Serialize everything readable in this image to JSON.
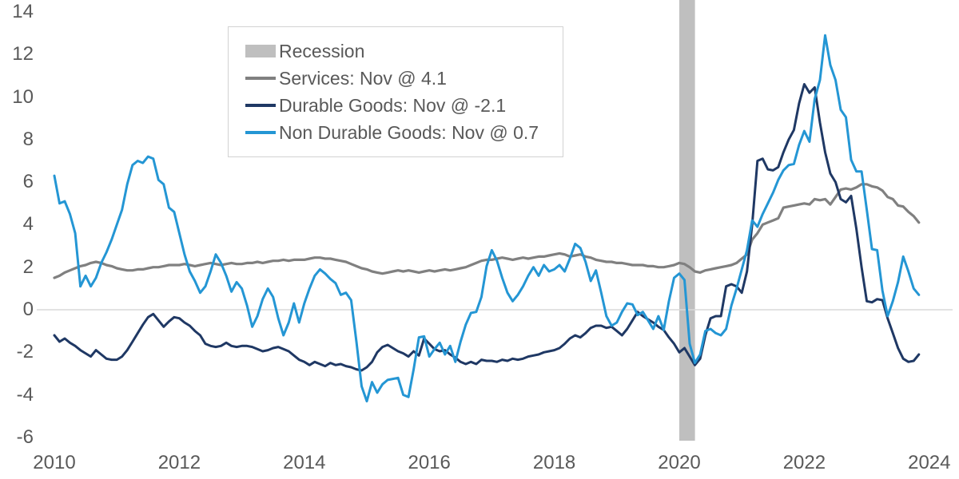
{
  "chart_data": {
    "type": "line",
    "title": "",
    "frequency": "monthly",
    "x_start": "2010-01",
    "x_end": "2023-11",
    "ylim": [
      -6,
      14
    ],
    "y_ticks": [
      14,
      12,
      10,
      8,
      6,
      4,
      2,
      0,
      -2,
      -4,
      -6
    ],
    "x_ticks": [
      2010,
      2012,
      2014,
      2016,
      2018,
      2020,
      2022,
      2024
    ],
    "grid": "zero-line-only",
    "legend_position": "top-left-inset",
    "colors": {
      "axis_text": "#595959",
      "zero_line": "#d9d9d9",
      "legend_border": "#d2d2d2"
    },
    "recession_band": {
      "label": "Recession",
      "color": "#bfbfbf",
      "start_year": 2020.0,
      "end_year": 2020.25
    },
    "series": [
      {
        "name": "Services",
        "legend_label": "Services: Nov @ 4.1",
        "color": "#808080",
        "last_value": 4.1,
        "values": [
          1.5,
          1.6,
          1.75,
          1.85,
          1.95,
          2.05,
          2.1,
          2.2,
          2.25,
          2.2,
          2.1,
          2.05,
          1.95,
          1.9,
          1.85,
          1.85,
          1.9,
          1.9,
          1.95,
          2.0,
          2.0,
          2.05,
          2.1,
          2.1,
          2.1,
          2.15,
          2.1,
          2.05,
          2.1,
          2.15,
          2.2,
          2.15,
          2.1,
          2.15,
          2.2,
          2.15,
          2.15,
          2.2,
          2.2,
          2.25,
          2.2,
          2.25,
          2.3,
          2.3,
          2.35,
          2.3,
          2.35,
          2.35,
          2.35,
          2.4,
          2.45,
          2.45,
          2.4,
          2.4,
          2.35,
          2.3,
          2.25,
          2.15,
          2.05,
          1.95,
          1.9,
          1.8,
          1.75,
          1.7,
          1.75,
          1.8,
          1.85,
          1.8,
          1.85,
          1.8,
          1.75,
          1.8,
          1.85,
          1.8,
          1.85,
          1.9,
          1.85,
          1.9,
          1.95,
          2.0,
          2.1,
          2.2,
          2.3,
          2.35,
          2.35,
          2.4,
          2.45,
          2.4,
          2.35,
          2.4,
          2.45,
          2.4,
          2.45,
          2.5,
          2.5,
          2.55,
          2.6,
          2.65,
          2.6,
          2.5,
          2.55,
          2.6,
          2.5,
          2.45,
          2.35,
          2.3,
          2.25,
          2.25,
          2.2,
          2.2,
          2.15,
          2.1,
          2.1,
          2.1,
          2.05,
          2.05,
          2.0,
          2.0,
          2.05,
          2.1,
          2.2,
          2.15,
          2.0,
          1.8,
          1.75,
          1.85,
          1.9,
          1.95,
          2.0,
          2.05,
          2.1,
          2.2,
          2.4,
          2.6,
          3.3,
          3.6,
          4.0,
          4.1,
          4.2,
          4.3,
          4.8,
          4.85,
          4.9,
          4.95,
          5.0,
          4.95,
          5.2,
          5.15,
          5.2,
          4.95,
          5.3,
          5.65,
          5.7,
          5.65,
          5.75,
          5.9,
          5.9,
          5.8,
          5.75,
          5.6,
          5.3,
          5.2,
          4.9,
          4.85,
          4.6,
          4.4,
          4.1
        ]
      },
      {
        "name": "Durable Goods",
        "legend_label": "Durable Goods: Nov @ -2.1",
        "color": "#1f3864",
        "last_value": -2.1,
        "values": [
          -1.2,
          -1.5,
          -1.35,
          -1.55,
          -1.7,
          -1.9,
          -2.05,
          -2.2,
          -1.9,
          -2.1,
          -2.3,
          -2.35,
          -2.35,
          -2.2,
          -1.9,
          -1.5,
          -1.1,
          -0.7,
          -0.35,
          -0.2,
          -0.5,
          -0.8,
          -0.55,
          -0.35,
          -0.4,
          -0.6,
          -0.75,
          -1.0,
          -1.2,
          -1.6,
          -1.7,
          -1.75,
          -1.7,
          -1.55,
          -1.7,
          -1.75,
          -1.7,
          -1.7,
          -1.75,
          -1.85,
          -1.95,
          -1.9,
          -1.8,
          -1.75,
          -1.85,
          -1.95,
          -2.15,
          -2.35,
          -2.45,
          -2.6,
          -2.45,
          -2.55,
          -2.65,
          -2.5,
          -2.6,
          -2.55,
          -2.65,
          -2.7,
          -2.8,
          -2.85,
          -2.7,
          -2.45,
          -2.0,
          -1.75,
          -1.65,
          -1.8,
          -1.95,
          -2.05,
          -2.2,
          -1.95,
          -2.15,
          -1.35,
          -1.6,
          -1.85,
          -1.95,
          -1.9,
          -2.1,
          -2.25,
          -2.45,
          -2.55,
          -2.45,
          -2.55,
          -2.35,
          -2.4,
          -2.4,
          -2.45,
          -2.35,
          -2.4,
          -2.3,
          -2.35,
          -2.3,
          -2.2,
          -2.15,
          -2.1,
          -2.0,
          -1.95,
          -1.9,
          -1.8,
          -1.6,
          -1.35,
          -1.2,
          -1.3,
          -1.1,
          -0.85,
          -0.75,
          -0.75,
          -0.85,
          -0.8,
          -1.0,
          -1.2,
          -0.9,
          -0.5,
          -0.1,
          -0.3,
          -0.45,
          -0.6,
          -0.8,
          -0.95,
          -1.3,
          -1.6,
          -2.0,
          -1.8,
          -2.2,
          -2.6,
          -2.3,
          -1.2,
          -0.4,
          -0.3,
          -0.3,
          1.1,
          1.2,
          1.1,
          0.8,
          1.8,
          4.0,
          7.0,
          7.1,
          6.6,
          6.55,
          6.7,
          7.4,
          8.0,
          8.45,
          9.7,
          10.6,
          10.2,
          10.45,
          8.8,
          7.4,
          6.4,
          6.0,
          5.2,
          5.05,
          5.35,
          3.8,
          2.0,
          0.4,
          0.35,
          0.5,
          0.45,
          -0.4,
          -1.1,
          -1.8,
          -2.3,
          -2.45,
          -2.4,
          -2.1
        ]
      },
      {
        "name": "Non Durable Goods",
        "legend_label": "Non Durable Goods: Nov @ 0.7",
        "color": "#2496d4",
        "last_value": 0.7,
        "values": [
          6.3,
          5.0,
          5.1,
          4.5,
          3.6,
          1.1,
          1.6,
          1.1,
          1.5,
          2.2,
          2.7,
          3.3,
          4.0,
          4.7,
          5.9,
          6.8,
          7.0,
          6.9,
          7.2,
          7.1,
          6.1,
          5.9,
          4.8,
          4.6,
          3.6,
          2.6,
          1.8,
          1.35,
          0.8,
          1.1,
          1.8,
          2.6,
          2.2,
          1.6,
          0.85,
          1.3,
          1.0,
          0.2,
          -0.8,
          -0.3,
          0.5,
          1.0,
          0.6,
          -0.4,
          -1.2,
          -0.6,
          0.3,
          -0.6,
          0.3,
          1.0,
          1.6,
          1.9,
          1.7,
          1.45,
          1.25,
          0.7,
          0.8,
          0.45,
          -1.5,
          -3.6,
          -4.3,
          -3.4,
          -3.9,
          -3.5,
          -3.3,
          -3.25,
          -3.2,
          -4.0,
          -4.1,
          -2.8,
          -1.3,
          -1.25,
          -2.2,
          -1.85,
          -1.55,
          -2.1,
          -1.7,
          -2.45,
          -1.5,
          -0.7,
          -0.15,
          -0.1,
          0.6,
          2.05,
          2.8,
          2.3,
          1.5,
          0.8,
          0.4,
          0.7,
          1.1,
          1.6,
          2.0,
          1.6,
          2.1,
          1.8,
          1.9,
          2.1,
          1.8,
          2.4,
          3.1,
          2.9,
          2.25,
          1.35,
          1.85,
          0.8,
          -0.3,
          -0.75,
          -0.6,
          -0.1,
          0.3,
          0.25,
          -0.25,
          -0.1,
          -0.5,
          -0.9,
          -0.3,
          -0.95,
          0.4,
          1.5,
          1.7,
          1.4,
          -1.6,
          -2.5,
          -2.1,
          -1.0,
          -0.9,
          -1.1,
          -1.2,
          -0.9,
          0.2,
          1.0,
          1.9,
          2.8,
          4.2,
          3.9,
          4.5,
          5.0,
          5.5,
          6.1,
          6.55,
          6.8,
          6.85,
          7.75,
          8.4,
          7.9,
          9.9,
          10.8,
          12.9,
          11.5,
          10.8,
          9.4,
          9.05,
          7.05,
          6.5,
          6.5,
          4.7,
          2.85,
          2.8,
          0.9,
          -0.3,
          0.4,
          1.3,
          2.5,
          1.8,
          1.0,
          0.7
        ]
      }
    ]
  }
}
